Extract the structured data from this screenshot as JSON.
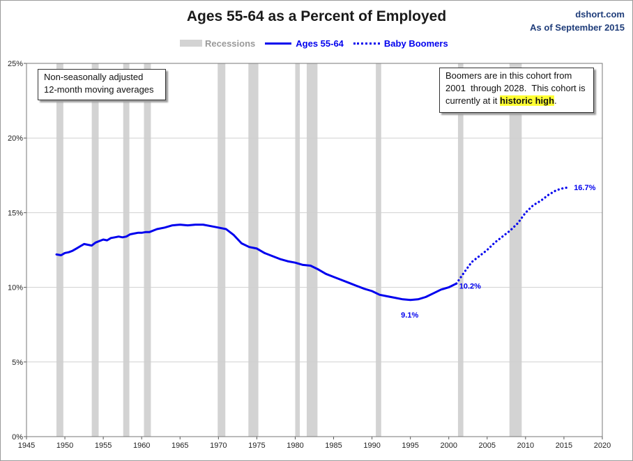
{
  "header": {
    "title": "Ages 55-64 as a Percent of Employed",
    "source": "dshort.com",
    "date": "As of September 2015"
  },
  "legend": {
    "recessions": "Recessions",
    "series_main": "Ages 55-64",
    "series_proj": "Baby Boomers"
  },
  "notes": {
    "left_line1": "Non-seasonally adjusted",
    "left_line2": "12-month moving averages",
    "right_line1": "Boomers are in this cohort from",
    "right_line2": "2001  through 2028.  This cohort is",
    "right_line3_pre": "currently at it ",
    "right_line3_hl": "historic high",
    "right_line3_post": "."
  },
  "colors": {
    "series": "#0000ee",
    "recession": "#d3d3d3",
    "grid": "#d0d0d0",
    "highlight": "#ffff33"
  },
  "chart_data": {
    "type": "line",
    "title": "Ages 55-64 as a Percent of Employed",
    "xlabel": "",
    "ylabel": "",
    "xlim": [
      1945,
      2020
    ],
    "ylim": [
      0,
      25
    ],
    "x_ticks": [
      "1945",
      "1950",
      "1955",
      "1960",
      "1965",
      "1970",
      "1975",
      "1980",
      "1985",
      "1990",
      "1995",
      "2000",
      "2005",
      "2010",
      "2015",
      "2020"
    ],
    "y_ticks": [
      "0%",
      "5%",
      "10%",
      "15%",
      "20%",
      "25%"
    ],
    "grid": true,
    "legend_position": "top-center",
    "recessions": [
      [
        1948.9,
        1949.8
      ],
      [
        1953.5,
        1954.4
      ],
      [
        1957.6,
        1958.4
      ],
      [
        1960.3,
        1961.2
      ],
      [
        1969.9,
        1970.9
      ],
      [
        1973.9,
        1975.2
      ],
      [
        1980.0,
        1980.6
      ],
      [
        1981.5,
        1982.9
      ],
      [
        1990.5,
        1991.2
      ],
      [
        2001.2,
        2001.9
      ],
      [
        2007.9,
        2009.5
      ]
    ],
    "series": [
      {
        "name": "Ages 55-64",
        "style": "solid",
        "x": [
          1948.9,
          1949.5,
          1950,
          1950.5,
          1951,
          1951.5,
          1952,
          1952.5,
          1953,
          1953.5,
          1954,
          1954.5,
          1955,
          1955.5,
          1956,
          1956.5,
          1957,
          1957.5,
          1958,
          1958.5,
          1959,
          1959.5,
          1960,
          1960.5,
          1961,
          1962,
          1963,
          1964,
          1965,
          1966,
          1967,
          1968,
          1969,
          1970,
          1971,
          1972,
          1973,
          1974,
          1975,
          1976,
          1977,
          1978,
          1979,
          1980,
          1981,
          1982,
          1983,
          1984,
          1985,
          1986,
          1987,
          1988,
          1989,
          1990,
          1991,
          1992,
          1993,
          1994,
          1995,
          1996,
          1997,
          1998,
          1999,
          2000,
          2001
        ],
        "y": [
          12.2,
          12.15,
          12.3,
          12.35,
          12.45,
          12.6,
          12.75,
          12.9,
          12.85,
          12.8,
          13.0,
          13.1,
          13.2,
          13.15,
          13.3,
          13.35,
          13.4,
          13.35,
          13.4,
          13.55,
          13.6,
          13.65,
          13.65,
          13.7,
          13.7,
          13.9,
          14.0,
          14.15,
          14.2,
          14.15,
          14.2,
          14.2,
          14.1,
          14.0,
          13.9,
          13.5,
          12.95,
          12.7,
          12.6,
          12.3,
          12.1,
          11.9,
          11.75,
          11.65,
          11.5,
          11.45,
          11.2,
          10.9,
          10.7,
          10.5,
          10.3,
          10.1,
          9.9,
          9.75,
          9.5,
          9.4,
          9.3,
          9.2,
          9.15,
          9.2,
          9.35,
          9.6,
          9.85,
          10.0,
          10.25
        ]
      },
      {
        "name": "Baby Boomers",
        "style": "dotted",
        "x": [
          2001,
          2002,
          2003,
          2004,
          2005,
          2006,
          2007,
          2008,
          2009,
          2010,
          2011,
          2012,
          2013,
          2014,
          2015,
          2015.75
        ],
        "y": [
          10.25,
          11.0,
          11.7,
          12.1,
          12.5,
          13.0,
          13.4,
          13.8,
          14.3,
          15.0,
          15.5,
          15.8,
          16.2,
          16.5,
          16.65,
          16.7
        ]
      }
    ],
    "annotations": [
      {
        "text": "9.1%",
        "x": 1994.5,
        "y": 9.1
      },
      {
        "text": "10.2%",
        "x": 2001,
        "y": 10.2
      },
      {
        "text": "16.7%",
        "x": 2015.75,
        "y": 16.7
      }
    ]
  }
}
